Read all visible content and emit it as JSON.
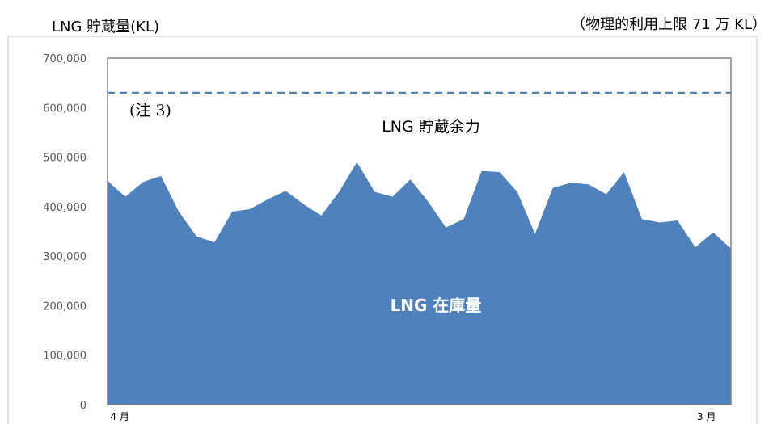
{
  "header": {
    "unit_title": "LNG 貯蔵量(KL)",
    "capacity_note": "（物理的利用上限 71 万 KL）"
  },
  "chart_data": {
    "type": "area",
    "ylim": [
      0,
      700000
    ],
    "y_ticks": [
      0,
      100000,
      200000,
      300000,
      400000,
      500000,
      600000,
      700000
    ],
    "y_tick_labels": [
      "0",
      "100,000",
      "200,000",
      "300,000",
      "400,000",
      "500,000",
      "600,000",
      "700,000"
    ],
    "x_tick_labels": [
      "4 月",
      "3 月"
    ],
    "x_tick_positions": [
      1,
      49
    ],
    "grid": false,
    "series": [
      {
        "name": "LNG 在庫量",
        "color": "#4f81bd",
        "values": [
          452000,
          420000,
          450000,
          462000,
          390000,
          340000,
          328000,
          390000,
          395000,
          415000,
          432000,
          405000,
          382000,
          430000,
          490000,
          430000,
          420000,
          455000,
          410000,
          358000,
          375000,
          472000,
          470000,
          430000,
          345000,
          438000,
          448000,
          445000,
          425000,
          470000,
          375000,
          368000,
          372000,
          318000,
          348000,
          315000
        ]
      }
    ],
    "reference_line": {
      "label": "(注 3)",
      "value": 630000,
      "style": "dashed",
      "color": "#4f81bd"
    },
    "annotations": {
      "storage_margin": "LNG 貯蔵余力",
      "inventory": "LNG 在庫量"
    }
  }
}
